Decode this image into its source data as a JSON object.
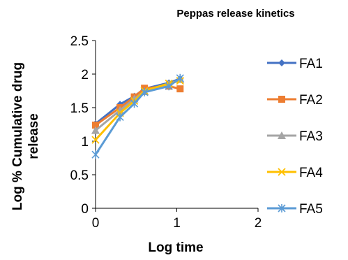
{
  "chart_data": {
    "type": "line",
    "title": "Peppas release kinetics",
    "xlabel": "Log time",
    "ylabel": "Log % Cumulative drug release",
    "xlim": [
      0,
      2
    ],
    "ylim": [
      0,
      2.5
    ],
    "x_ticks": [
      "0",
      "1",
      "2"
    ],
    "y_ticks": [
      "0",
      "0.5",
      "1",
      "1.5",
      "2",
      "2.5"
    ],
    "grid": false,
    "legend_position": "right",
    "series": [
      {
        "name": "FA1",
        "color": "#4472C4",
        "marker": "diamond",
        "x": [
          0,
          0.301,
          0.477,
          0.602,
          0.903,
          1.041
        ],
        "y": [
          1.26,
          1.55,
          1.67,
          1.78,
          1.87,
          1.93
        ]
      },
      {
        "name": "FA2",
        "color": "#ED7D31",
        "marker": "square",
        "x": [
          0,
          0.301,
          0.477,
          0.602,
          0.903,
          1.041
        ],
        "y": [
          1.24,
          1.5,
          1.66,
          1.79,
          1.82,
          1.78
        ]
      },
      {
        "name": "FA3",
        "color": "#A5A5A5",
        "marker": "triangle",
        "x": [
          0,
          0.301,
          0.477,
          0.602,
          0.903,
          1.041
        ],
        "y": [
          1.16,
          1.46,
          1.63,
          1.74,
          1.85,
          1.92
        ]
      },
      {
        "name": "FA4",
        "color": "#FFC000",
        "marker": "x",
        "x": [
          0,
          0.301,
          0.477,
          0.602,
          0.903,
          1.041
        ],
        "y": [
          1.02,
          1.42,
          1.6,
          1.75,
          1.86,
          1.9
        ]
      },
      {
        "name": "FA5",
        "color": "#5B9BD5",
        "marker": "star",
        "x": [
          0,
          0.301,
          0.477,
          0.602,
          0.903,
          1.041
        ],
        "y": [
          0.8,
          1.36,
          1.56,
          1.73,
          1.82,
          1.94
        ]
      }
    ]
  }
}
